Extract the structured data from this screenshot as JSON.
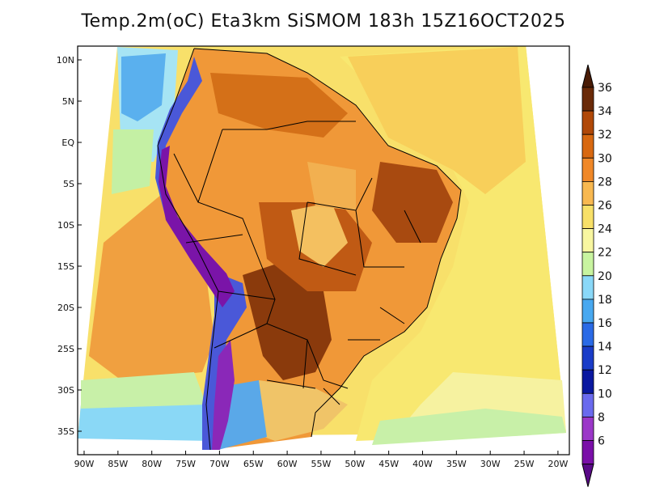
{
  "title": "Temp.2m(oC) Eta3km SiSMOM 183h 15Z16OCT2025",
  "map": {
    "region": "South America",
    "variable": "2 m temperature",
    "units": "oC",
    "lat_labels": [
      "10N",
      "5N",
      "EQ",
      "5S",
      "10S",
      "15S",
      "20S",
      "25S",
      "30S",
      "35S"
    ],
    "lon_labels": [
      "90W",
      "85W",
      "80W",
      "75W",
      "70W",
      "65W",
      "60W",
      "55W",
      "50W",
      "45W",
      "40W",
      "35W",
      "30W",
      "25W",
      "20W"
    ],
    "lat_values": [
      10,
      5,
      0,
      -5,
      -10,
      -15,
      -20,
      -25,
      -30,
      -35
    ],
    "lon_values": [
      -90,
      -85,
      -80,
      -75,
      -70,
      -65,
      -60,
      -55,
      -50,
      -45,
      -40,
      -35,
      -30,
      -25,
      -20
    ],
    "lat_range": [
      -38,
      11
    ],
    "lon_range": [
      -91,
      -19
    ]
  },
  "colorbar": {
    "labels": [
      "6",
      "8",
      "10",
      "12",
      "14",
      "16",
      "18",
      "20",
      "22",
      "24",
      "26",
      "28",
      "30",
      "32",
      "34",
      "36"
    ],
    "colors": [
      "#7a0fa8",
      "#9b37c8",
      "#6a6aee",
      "#0a18a0",
      "#1a3cc8",
      "#2a6ae6",
      "#48a8f0",
      "#8ad8f8",
      "#c8f4a0",
      "#f8f6a0",
      "#f8e068",
      "#f8b850",
      "#f08828",
      "#d86810",
      "#b04808",
      "#6a2a08",
      "#4a1c06"
    ],
    "arrow_low": "#5a0a88",
    "arrow_high": "#4a1c06"
  }
}
